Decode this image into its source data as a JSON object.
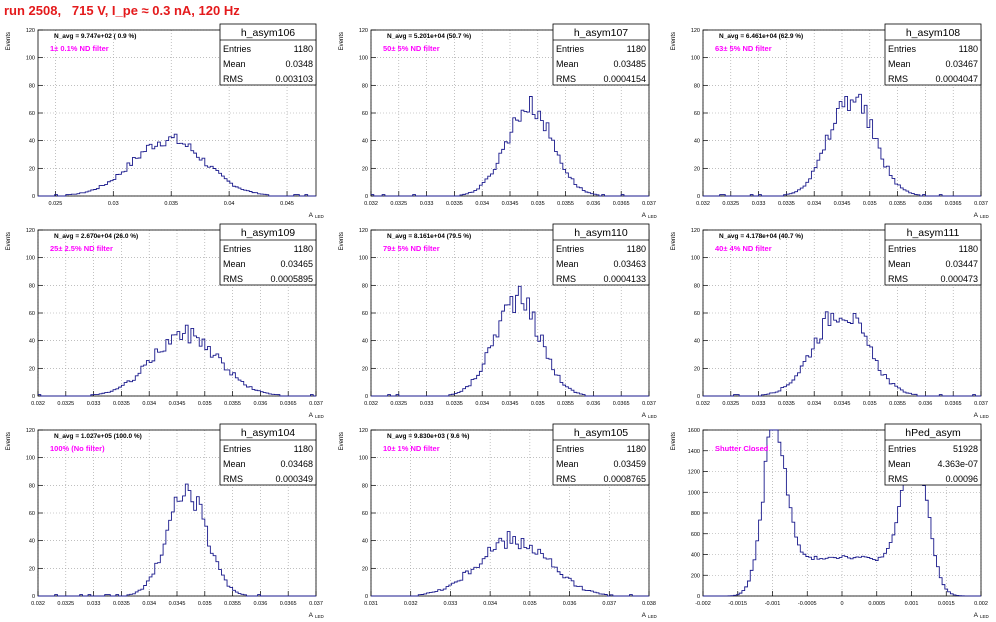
{
  "header": {
    "title": "run 2508,   715 V, I_pe ≈ 0.3 nA, 120 Hz"
  },
  "colors": {
    "title": "#e41a1c",
    "histogram": "#1a1a8c",
    "annotation": "#ff00ff",
    "grid": "#999999",
    "text": "#000000"
  },
  "panel_labels": {
    "ylabel": "Events",
    "xlabel": "A",
    "xlabel_sub": "LED",
    "stats_row_labels": [
      "Entries",
      "Mean",
      "RMS"
    ]
  },
  "chart_data": [
    {
      "type": "histogram",
      "title": "h_asym106",
      "navg": "N_avg = 9.747e+02 ( 0.9 %)",
      "annot": "1± 0.1% ND filter",
      "stats": {
        "entries": "1180",
        "mean": "0.0348",
        "rms": "0.003103"
      },
      "xlim": [
        0.0235,
        0.0475
      ],
      "ylim": [
        0,
        120
      ],
      "xticks": [
        0.025,
        0.03,
        0.035,
        0.04,
        0.045
      ],
      "xtick_labels": [
        "0.025",
        "0.03",
        "0.035",
        "0.04",
        "0.045"
      ],
      "yticks": [
        0,
        20,
        40,
        60,
        80,
        100,
        120
      ],
      "mean": 0.0348,
      "rms": 0.003103,
      "peak": 41,
      "noise": 0.12
    },
    {
      "type": "histogram",
      "title": "h_asym107",
      "navg": "N_avg = 5.201e+04 (50.7 %)",
      "annot": "50± 5% ND filter",
      "stats": {
        "entries": "1180",
        "mean": "0.03485",
        "rms": "0.0004154"
      },
      "xlim": [
        0.032,
        0.037
      ],
      "ylim": [
        0,
        120
      ],
      "xticks": [
        0.032,
        0.0325,
        0.033,
        0.0335,
        0.034,
        0.0345,
        0.035,
        0.0355,
        0.036,
        0.0365,
        0.037
      ],
      "xtick_labels": [
        "0.032",
        "0.0325",
        "0.033",
        "0.0335",
        "0.034",
        "0.0345",
        "0.035",
        "0.0355",
        "0.036",
        "0.0365",
        "0.037"
      ],
      "yticks": [
        0,
        20,
        40,
        60,
        80,
        100,
        120
      ],
      "mean": 0.03485,
      "rms": 0.0004154,
      "peak": 65,
      "noise": 0.12
    },
    {
      "type": "histogram",
      "title": "h_asym108",
      "navg": "N_avg = 6.461e+04 (62.9 %)",
      "annot": "63± 5% ND filter",
      "stats": {
        "entries": "1180",
        "mean": "0.03467",
        "rms": "0.0004047"
      },
      "xlim": [
        0.032,
        0.037
      ],
      "ylim": [
        0,
        120
      ],
      "xticks": [
        0.032,
        0.0325,
        0.033,
        0.0335,
        0.034,
        0.0345,
        0.035,
        0.0355,
        0.036,
        0.0365,
        0.037
      ],
      "xtick_labels": [
        "0.032",
        "0.0325",
        "0.033",
        "0.0335",
        "0.034",
        "0.0345",
        "0.035",
        "0.0355",
        "0.036",
        "0.0365",
        "0.037"
      ],
      "yticks": [
        0,
        20,
        40,
        60,
        80,
        100,
        120
      ],
      "mean": 0.03467,
      "rms": 0.0004047,
      "peak": 72,
      "noise": 0.14
    },
    {
      "type": "histogram",
      "title": "h_asym109",
      "navg": "N_avg = 2.670e+04 (26.0 %)",
      "annot": "25± 2.5% ND filter",
      "stats": {
        "entries": "1180",
        "mean": "0.03465",
        "rms": "0.0005895"
      },
      "xlim": [
        0.032,
        0.037
      ],
      "ylim": [
        0,
        120
      ],
      "xticks": [
        0.032,
        0.0325,
        0.033,
        0.0335,
        0.034,
        0.0345,
        0.035,
        0.0355,
        0.036,
        0.0365,
        0.037
      ],
      "xtick_labels": [
        "0.032",
        "0.0325",
        "0.033",
        "0.0335",
        "0.034",
        "0.0345",
        "0.035",
        "0.0355",
        "0.036",
        "0.0365",
        "0.037"
      ],
      "yticks": [
        0,
        20,
        40,
        60,
        80,
        100,
        120
      ],
      "mean": 0.03465,
      "rms": 0.0005895,
      "peak": 45,
      "noise": 0.14
    },
    {
      "type": "histogram",
      "title": "h_asym110",
      "navg": "N_avg = 8.161e+04 (79.5 %)",
      "annot": "79± 5% ND filter",
      "stats": {
        "entries": "1180",
        "mean": "0.03463",
        "rms": "0.0004133"
      },
      "xlim": [
        0.032,
        0.037
      ],
      "ylim": [
        0,
        120
      ],
      "xticks": [
        0.032,
        0.0325,
        0.033,
        0.0335,
        0.034,
        0.0345,
        0.035,
        0.0355,
        0.036,
        0.0365,
        0.037
      ],
      "xtick_labels": [
        "0.032",
        "0.0325",
        "0.033",
        "0.0335",
        "0.034",
        "0.0345",
        "0.035",
        "0.0355",
        "0.036",
        "0.0365",
        "0.037"
      ],
      "yticks": [
        0,
        20,
        40,
        60,
        80,
        100,
        120
      ],
      "mean": 0.03463,
      "rms": 0.0004133,
      "peak": 70,
      "noise": 0.14
    },
    {
      "type": "histogram",
      "title": "h_asym111",
      "navg": "N_avg = 4.178e+04 (40.7 %)",
      "annot": "40± 4% ND filter",
      "stats": {
        "entries": "1180",
        "mean": "0.03447",
        "rms": "0.000473"
      },
      "xlim": [
        0.032,
        0.037
      ],
      "ylim": [
        0,
        120
      ],
      "xticks": [
        0.032,
        0.0325,
        0.033,
        0.0335,
        0.034,
        0.0345,
        0.035,
        0.0355,
        0.036,
        0.0365,
        0.037
      ],
      "xtick_labels": [
        "0.032",
        "0.0325",
        "0.033",
        "0.0335",
        "0.034",
        "0.0345",
        "0.035",
        "0.0355",
        "0.036",
        "0.0365",
        "0.037"
      ],
      "yticks": [
        0,
        20,
        40,
        60,
        80,
        100,
        120
      ],
      "mean": 0.03447,
      "rms": 0.000473,
      "peak": 62,
      "noise": 0.14
    },
    {
      "type": "histogram",
      "title": "h_asym104",
      "navg": "N_avg = 1.027e+05 (100.0 %)",
      "annot": "100% (No filter)",
      "stats": {
        "entries": "1180",
        "mean": "0.03468",
        "rms": "0.000349"
      },
      "xlim": [
        0.032,
        0.037
      ],
      "ylim": [
        0,
        120
      ],
      "xticks": [
        0.032,
        0.0325,
        0.033,
        0.0335,
        0.034,
        0.0345,
        0.035,
        0.0355,
        0.036,
        0.0365,
        0.037
      ],
      "xtick_labels": [
        "0.032",
        "0.0325",
        "0.033",
        "0.0335",
        "0.034",
        "0.0345",
        "0.035",
        "0.0355",
        "0.036",
        "0.0365",
        "0.037"
      ],
      "yticks": [
        0,
        20,
        40,
        60,
        80,
        100,
        120
      ],
      "mean": 0.03468,
      "rms": 0.000349,
      "peak": 76,
      "noise": 0.12
    },
    {
      "type": "histogram",
      "title": "h_asym105",
      "navg": "N_avg = 9.830e+03 ( 9.6 %)",
      "annot": "10± 1% ND filter",
      "stats": {
        "entries": "1180",
        "mean": "0.03459",
        "rms": "0.0008765"
      },
      "xlim": [
        0.031,
        0.038
      ],
      "ylim": [
        0,
        120
      ],
      "xticks": [
        0.031,
        0.032,
        0.033,
        0.034,
        0.035,
        0.036,
        0.037,
        0.038
      ],
      "xtick_labels": [
        "0.031",
        "0.032",
        "0.033",
        "0.034",
        "0.035",
        "0.036",
        "0.037",
        "0.038"
      ],
      "yticks": [
        0,
        20,
        40,
        60,
        80,
        100,
        120
      ],
      "mean": 0.03459,
      "rms": 0.0008765,
      "peak": 40,
      "noise": 0.18
    },
    {
      "type": "histogram",
      "title": "hPed_asym",
      "navg": "",
      "annot": "Shutter Closed",
      "stats": {
        "entries": "51928",
        "mean": "4.363e-07",
        "rms": "0.00096"
      },
      "xlim": [
        -0.002,
        0.002
      ],
      "ylim": [
        0,
        1600
      ],
      "xticks": [
        -0.002,
        -0.0015,
        -0.001,
        -0.0005,
        0,
        0.0005,
        0.001,
        0.0015,
        0.002
      ],
      "xtick_labels": [
        "-0.002",
        "-0.0015",
        "-0.001",
        "-0.0005",
        "0",
        "0.0005",
        "0.001",
        "0.0015",
        "0.002"
      ],
      "yticks": [
        0,
        200,
        400,
        600,
        800,
        1000,
        1200,
        1400,
        1600
      ],
      "bimodal": true,
      "peak": 1540,
      "noise": 0.05
    }
  ]
}
